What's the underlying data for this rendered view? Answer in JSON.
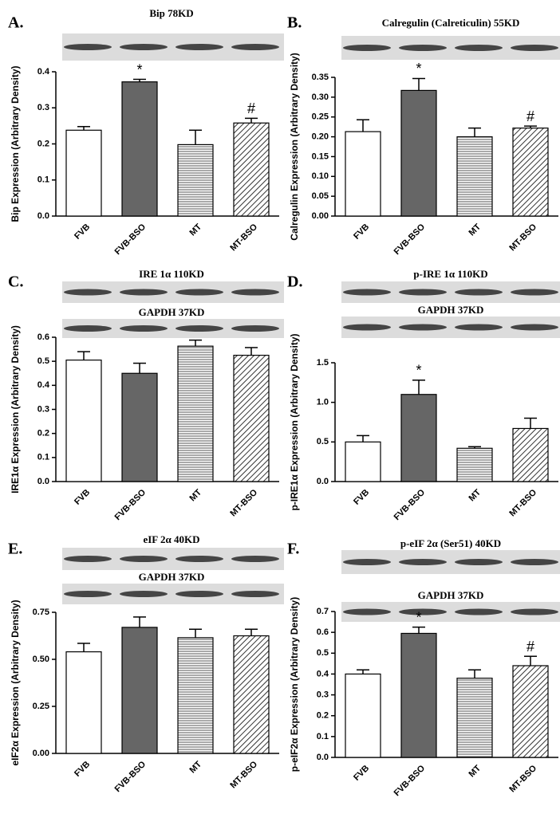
{
  "chart_data": [
    {
      "type": "bar",
      "panel": "A.",
      "blots": [
        "Bip 78KD"
      ],
      "ylabel": "Bip Expression (Arbitrary Density)",
      "categories": [
        "FVB",
        "FVB-BSO",
        "MT",
        "MT-BSO"
      ],
      "values": [
        0.238,
        0.372,
        0.198,
        0.258
      ],
      "errors": [
        0.01,
        0.007,
        0.04,
        0.013
      ],
      "markers": [
        null,
        "*",
        null,
        "#"
      ],
      "fills": [
        "white",
        "gray",
        "horizontal",
        "diagonal"
      ],
      "ylim": [
        0,
        0.4
      ],
      "yticks": [
        {
          "value": 0,
          "label": "0.0"
        },
        0.1,
        0.2,
        0.3,
        0.4
      ]
    },
    {
      "type": "bar",
      "panel": "B.",
      "blots": [
        "Calregulin (Calreticulin) 55KD"
      ],
      "ylabel": "Calregulin Expression (Arbitrary Density)",
      "categories": [
        "FVB",
        "FVB-BSO",
        "MT",
        "MT-BSO"
      ],
      "values": [
        0.213,
        0.317,
        0.2,
        0.222
      ],
      "errors": [
        0.03,
        0.03,
        0.022,
        0.005
      ],
      "markers": [
        null,
        "*",
        null,
        "#"
      ],
      "fills": [
        "white",
        "gray",
        "horizontal",
        "diagonal"
      ],
      "ylim": [
        0,
        0.35
      ],
      "yticks": [
        {
          "value": 0,
          "label": "0.00"
        },
        0.05,
        {
          "value": 0.1,
          "label": "0.10"
        },
        0.15,
        {
          "value": 0.2,
          "label": "0.20"
        },
        0.25,
        {
          "value": 0.3,
          "label": "0.30"
        },
        0.35
      ]
    },
    {
      "type": "bar",
      "panel": "C.",
      "blots": [
        "IRE 1α 110KD",
        "GAPDH 37KD"
      ],
      "ylabel": "IRE1α Expression (Arbitrary Density)",
      "categories": [
        "FVB",
        "FVB-BSO",
        "MT",
        "MT-BSO"
      ],
      "values": [
        0.505,
        0.45,
        0.563,
        0.525
      ],
      "errors": [
        0.035,
        0.042,
        0.025,
        0.032
      ],
      "markers": [
        null,
        null,
        null,
        null
      ],
      "fills": [
        "white",
        "gray",
        "horizontal",
        "diagonal"
      ],
      "ylim": [
        0,
        0.6
      ],
      "yticks": [
        {
          "value": 0,
          "label": "0.0"
        },
        0.1,
        0.2,
        0.3,
        0.4,
        0.5,
        0.6
      ]
    },
    {
      "type": "bar",
      "panel": "D.",
      "blots": [
        "p-IRE 1α 110KD",
        "GAPDH 37KD"
      ],
      "ylabel": "p-IRE1α Expression (Arbitrary Density)",
      "categories": [
        "FVB",
        "FVB-BSO",
        "MT",
        "MT-BSO"
      ],
      "values": [
        0.5,
        1.1,
        0.42,
        0.67
      ],
      "errors": [
        0.08,
        0.18,
        0.02,
        0.13
      ],
      "markers": [
        null,
        "*",
        null,
        null
      ],
      "fills": [
        "white",
        "gray",
        "horizontal",
        "diagonal"
      ],
      "ylim": [
        0,
        1.5
      ],
      "yticks": [
        {
          "value": 0,
          "label": "0.0"
        },
        0.5,
        {
          "value": 1,
          "label": "1.0"
        },
        1.5
      ]
    },
    {
      "type": "bar",
      "panel": "E.",
      "blots": [
        "eIF 2α 40KD",
        "GAPDH 37KD"
      ],
      "ylabel": "eIF2α Expression (Arbitrary Density)",
      "categories": [
        "FVB",
        "FVB-BSO",
        "MT",
        "MT-BSO"
      ],
      "values": [
        0.54,
        0.67,
        0.615,
        0.625
      ],
      "errors": [
        0.045,
        0.055,
        0.045,
        0.035
      ],
      "markers": [
        null,
        null,
        null,
        null
      ],
      "fills": [
        "white",
        "gray",
        "horizontal",
        "diagonal"
      ],
      "ylim": [
        0,
        0.75
      ],
      "yticks": [
        {
          "value": 0,
          "label": "0.00"
        },
        0.25,
        {
          "value": 0.5,
          "label": "0.50"
        },
        0.75
      ]
    },
    {
      "type": "bar",
      "panel": "F.",
      "blots": [
        "p-eIF 2α (Ser51) 40KD",
        "GAPDH 37KD"
      ],
      "ylabel": "p-eIF2α Expression (Arbitrary Density)",
      "categories": [
        "FVB",
        "FVB-BSO",
        "MT",
        "MT-BSO"
      ],
      "values": [
        0.4,
        0.595,
        0.38,
        0.44
      ],
      "errors": [
        0.02,
        0.03,
        0.04,
        0.045
      ],
      "markers": [
        null,
        "*",
        null,
        "#"
      ],
      "fills": [
        "white",
        "gray",
        "horizontal",
        "diagonal"
      ],
      "ylim": [
        0,
        0.7
      ],
      "yticks": [
        {
          "value": 0,
          "label": "0.0"
        },
        0.1,
        0.2,
        0.3,
        0.4,
        0.5,
        0.6,
        0.7
      ]
    }
  ]
}
